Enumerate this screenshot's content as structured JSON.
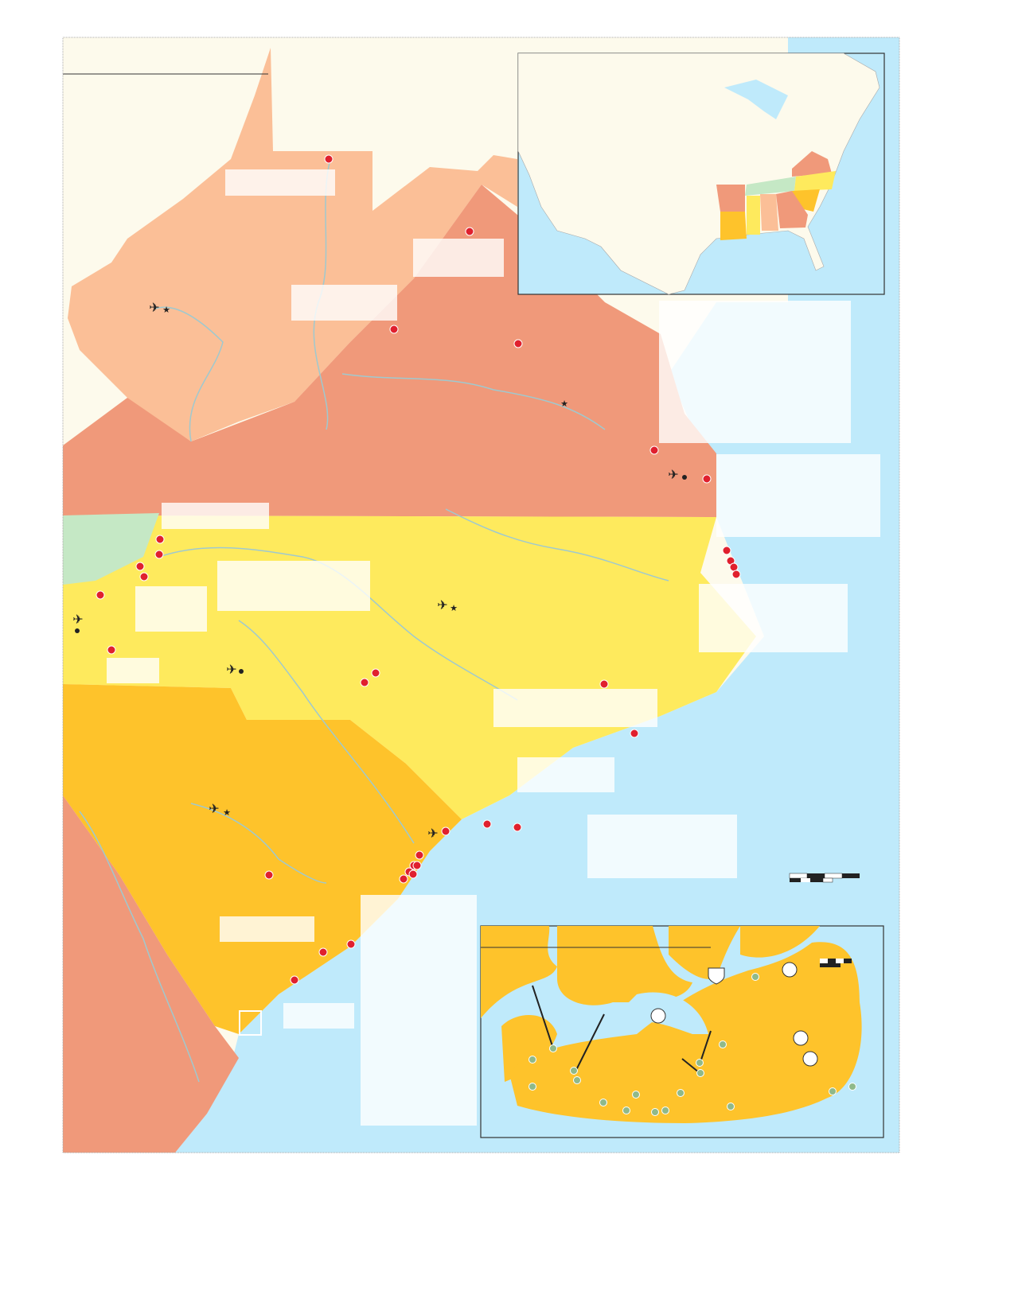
{
  "colors": {
    "ocean": "#bfeafb",
    "land": "#fdfaec",
    "west_virginia": "#fbbf97",
    "virginia": "#f0997a",
    "north_carolina": "#feea5d",
    "tennessee": "#c5e8c5",
    "south_carolina": "#fec32b",
    "georgia": "#f0997a",
    "city_marker": "#e0202e",
    "beach_marker": "#8fb98a",
    "river": "#9fc9cf",
    "label_box": "#ffffff"
  },
  "icons": {
    "airport": "airplane-icon",
    "capital": "star-icon",
    "city": "dot-icon",
    "highway_shield": "us-highway-shield-icon",
    "scale_bar": "scale-bar-icon"
  },
  "insets": {
    "overview": "us-locator-map",
    "detail": "barrier-island-detail-map"
  }
}
